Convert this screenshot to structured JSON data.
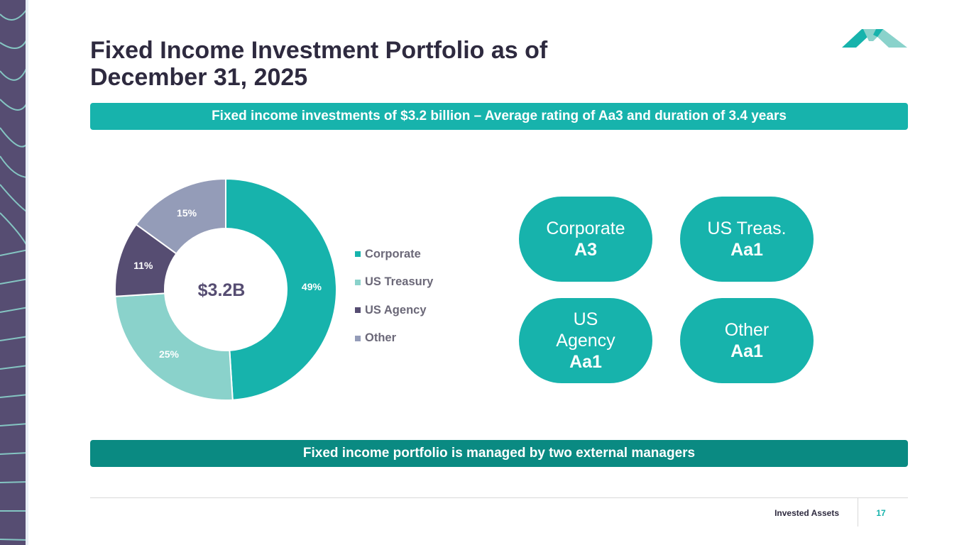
{
  "slide": {
    "title": "Fixed Income Investment Portfolio as of December 31, 2025",
    "banner_top": "Fixed income investments of $3.2 billion – Average rating of Aa3 and duration of 3.4 years",
    "banner_bottom": "Fixed income portfolio is managed by two external managers",
    "footer_label": "Invested Assets",
    "page_number": "17"
  },
  "colors": {
    "teal": "#17b3ac",
    "dark_teal": "#0a8a82",
    "light_teal": "#8ad2cb",
    "purple": "#564d72",
    "grey_blue": "#949cb8",
    "title": "#2e2a3f"
  },
  "chart_data": {
    "type": "pie",
    "title": "",
    "center_label": "$3.2B",
    "categories": [
      "Corporate",
      "US Treasury",
      "US Agency",
      "Other"
    ],
    "values": [
      49,
      25,
      11,
      15
    ],
    "labels": [
      "49%",
      "25%",
      "11%",
      "15%"
    ],
    "colors": [
      "#17b3ac",
      "#8ad2cb",
      "#564d72",
      "#949cb8"
    ],
    "legend_position": "right"
  },
  "ratings": [
    {
      "line1": "Corporate",
      "line2": "",
      "rating": "A3"
    },
    {
      "line1": "US Treas.",
      "line2": "",
      "rating": "Aa1"
    },
    {
      "line1": "US",
      "line2": "Agency",
      "rating": "Aa1"
    },
    {
      "line1": "Other",
      "line2": "",
      "rating": "Aa1"
    }
  ]
}
